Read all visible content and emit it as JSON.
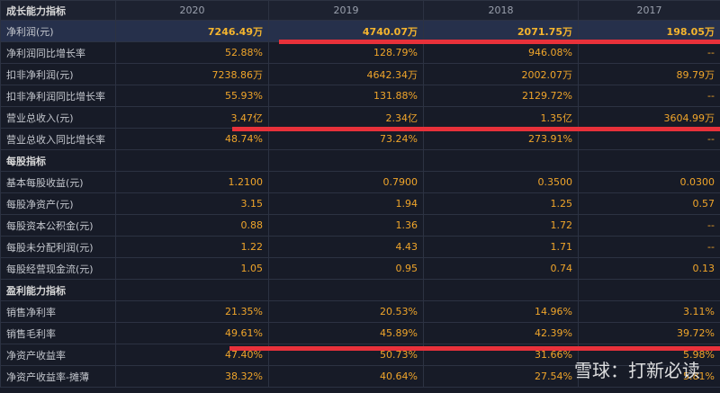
{
  "table": {
    "header": [
      "成长能力指标",
      "2020",
      "2019",
      "2018",
      "2017"
    ],
    "rows": [
      [
        "净利润(元)",
        "7246.49万",
        "4740.07万",
        "2071.75万",
        "198.05万"
      ],
      [
        "净利润同比增长率",
        "52.88%",
        "128.79%",
        "946.08%",
        "--"
      ],
      [
        "扣非净利润(元)",
        "7238.86万",
        "4642.34万",
        "2002.07万",
        "89.79万"
      ],
      [
        "扣非净利润同比增长率",
        "55.93%",
        "131.88%",
        "2129.72%",
        "--"
      ],
      [
        "营业总收入(元)",
        "3.47亿",
        "2.34亿",
        "1.35亿",
        "3604.99万"
      ],
      [
        "营业总收入同比增长率",
        "48.74%",
        "73.24%",
        "273.91%",
        "--"
      ],
      [
        "每股指标"
      ],
      [
        "基本每股收益(元)",
        "1.2100",
        "0.7900",
        "0.3500",
        "0.0300"
      ],
      [
        "每股净资产(元)",
        "3.15",
        "1.94",
        "1.25",
        "0.57"
      ],
      [
        "每股资本公积金(元)",
        "0.88",
        "1.36",
        "1.72",
        "--"
      ],
      [
        "每股未分配利润(元)",
        "1.22",
        "4.43",
        "1.71",
        "--"
      ],
      [
        "每股经营现金流(元)",
        "1.05",
        "0.95",
        "0.74",
        "0.13"
      ],
      [
        "盈利能力指标"
      ],
      [
        "销售净利率",
        "21.35%",
        "20.53%",
        "14.96%",
        "3.11%"
      ],
      [
        "销售毛利率",
        "49.61%",
        "45.89%",
        "42.39%",
        "39.72%"
      ],
      [
        "净资产收益率",
        "47.40%",
        "50.73%",
        "31.66%",
        "5.98%"
      ],
      [
        "净资产收益率-摊薄",
        "38.32%",
        "40.64%",
        "27.54%",
        "5.81%"
      ]
    ]
  },
  "watermark": "雪球：打新必读"
}
